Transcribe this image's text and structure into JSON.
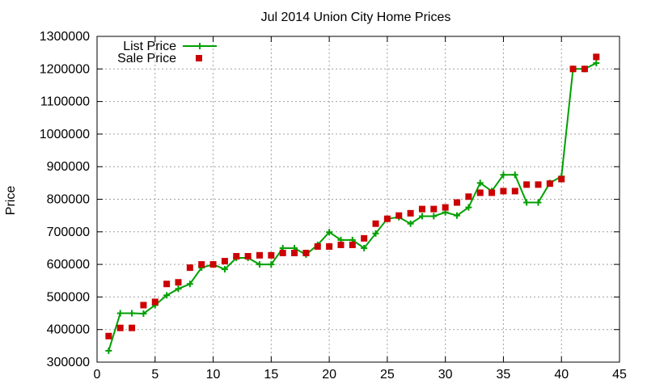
{
  "chart_data": {
    "type": "line",
    "title": "Jul 2014 Union City Home Prices",
    "xlabel": "",
    "ylabel": "Price",
    "xlim": [
      0,
      45
    ],
    "ylim": [
      300000,
      1300000
    ],
    "xticks": [
      0,
      5,
      10,
      15,
      20,
      25,
      30,
      35,
      40,
      45
    ],
    "yticks": [
      300000,
      400000,
      500000,
      600000,
      700000,
      800000,
      900000,
      1000000,
      1100000,
      1200000,
      1300000
    ],
    "grid": true,
    "legend_position": "top-left",
    "x": [
      1,
      2,
      3,
      4,
      5,
      6,
      7,
      8,
      9,
      10,
      11,
      12,
      13,
      14,
      15,
      16,
      17,
      18,
      19,
      20,
      21,
      22,
      23,
      24,
      25,
      26,
      27,
      28,
      29,
      30,
      31,
      32,
      33,
      34,
      35,
      36,
      37,
      38,
      39,
      40,
      41,
      42,
      43
    ],
    "series": [
      {
        "name": "List Price",
        "style": "line+cross",
        "color": "#00a000",
        "values": [
          335000,
          450000,
          450000,
          449000,
          475000,
          505000,
          525000,
          540000,
          590000,
          600000,
          585000,
          620000,
          620000,
          600000,
          600000,
          650000,
          650000,
          630000,
          660000,
          699000,
          675000,
          675000,
          650000,
          695000,
          740000,
          745000,
          725000,
          748000,
          748000,
          760000,
          750000,
          775000,
          850000,
          825000,
          875000,
          875000,
          790000,
          790000,
          850000,
          870000,
          1200000,
          1200000,
          1218000
        ]
      },
      {
        "name": "Sale Price",
        "style": "square-markers",
        "color": "#cc0000",
        "values": [
          380000,
          405000,
          405000,
          475000,
          485000,
          540000,
          545000,
          590000,
          600000,
          600000,
          610000,
          625000,
          625000,
          628000,
          628000,
          635000,
          635000,
          635000,
          655000,
          655000,
          660000,
          660000,
          680000,
          725000,
          740000,
          750000,
          757000,
          770000,
          770000,
          775000,
          790000,
          808000,
          820000,
          820000,
          825000,
          825000,
          845000,
          845000,
          848000,
          862000,
          1200000,
          1200000,
          1237000
        ]
      }
    ]
  }
}
